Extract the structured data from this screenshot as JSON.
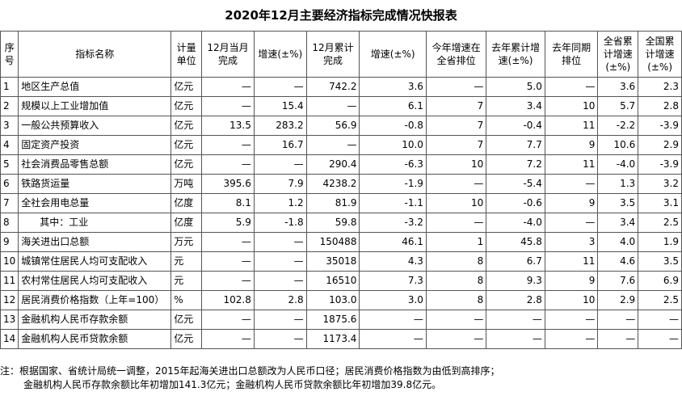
{
  "title": "2020年12月主要经济指标完成情况快报表",
  "headers": [
    "序号",
    "指标名称",
    "计量单位",
    "12月当月完成",
    "增速(±%)",
    "12月累计完成",
    "增速(±%)",
    "今年增速在全省排位",
    "去年累计增速(±%)",
    "去年同期排位",
    "全省累计增速(±%)",
    "全国累计增速(±%)"
  ],
  "rows": [
    [
      "1",
      "地区生产总值",
      "亿元",
      "—",
      "—",
      "742.2",
      "3.6",
      "—",
      "5.0",
      "—",
      "3.6",
      "2.3"
    ],
    [
      "2",
      "规模以上工业增加值",
      "亿元",
      "—",
      "15.4",
      "—",
      "6.1",
      "7",
      "3.4",
      "10",
      "5.7",
      "2.8"
    ],
    [
      "3",
      "一般公共预算收入",
      "亿元",
      "13.5",
      "283.2",
      "56.9",
      "-0.8",
      "7",
      "-0.4",
      "11",
      "-2.2",
      "-3.9"
    ],
    [
      "4",
      "固定资产投资",
      "亿元",
      "—",
      "16.7",
      "—",
      "10.0",
      "7",
      "7.7",
      "9",
      "10.6",
      "2.9"
    ],
    [
      "5",
      "社会消费品零售总额",
      "亿元",
      "—",
      "—",
      "290.4",
      "-6.3",
      "10",
      "7.2",
      "11",
      "-4.0",
      "-3.9"
    ],
    [
      "6",
      "铁路货运量",
      "万吨",
      "395.6",
      "7.9",
      "4238.2",
      "-1.9",
      "—",
      "-5.4",
      "—",
      "1.3",
      "3.2"
    ],
    [
      "7",
      "全社会用电总量",
      "亿度",
      "8.1",
      "1.2",
      "81.9",
      "-1.1",
      "10",
      "-0.6",
      "9",
      "3.5",
      "3.1"
    ],
    [
      "8",
      "其中：工业",
      "亿度",
      "5.9",
      "-1.8",
      "59.8",
      "-3.2",
      "—",
      "-4.0",
      "—",
      "3.4",
      "2.5"
    ],
    [
      "9",
      "海关进出口总额",
      "万元",
      "—",
      "—",
      "150488",
      "46.1",
      "1",
      "45.8",
      "3",
      "4.0",
      "1.9"
    ],
    [
      "10",
      "城镇常住居民人均可支配收入",
      "元",
      "—",
      "—",
      "35018",
      "4.3",
      "8",
      "6.7",
      "11",
      "4.6",
      "3.5"
    ],
    [
      "11",
      "农村常住居民人均可支配收入",
      "元",
      "—",
      "—",
      "16510",
      "7.3",
      "8",
      "9.3",
      "9",
      "7.6",
      "6.9"
    ],
    [
      "12",
      "居民消费价格指数（上年=100）",
      "%",
      "102.8",
      "2.8",
      "103.0",
      "3.0",
      "8",
      "2.8",
      "10",
      "2.9",
      "2.5"
    ],
    [
      "13",
      "金融机构人民币存款余额",
      "亿元",
      "—",
      "—",
      "1875.6",
      "—",
      "—",
      "—",
      "—",
      "—",
      "—"
    ],
    [
      "14",
      "金融机构人民币贷款余额",
      "亿元",
      "—",
      "—",
      "1173.4",
      "—",
      "—",
      "—",
      "—",
      "—",
      "—"
    ]
  ],
  "notes": [
    "注：根据国家、省统计局统一调整，2015年起海关进出口总额改为人民币口径；居民消费价格指数为由低到高排序；",
    "金融机构人民币存款余额比年初增加141.3亿元；金融机构人民币贷款余额比年初增加39.8亿元。"
  ]
}
